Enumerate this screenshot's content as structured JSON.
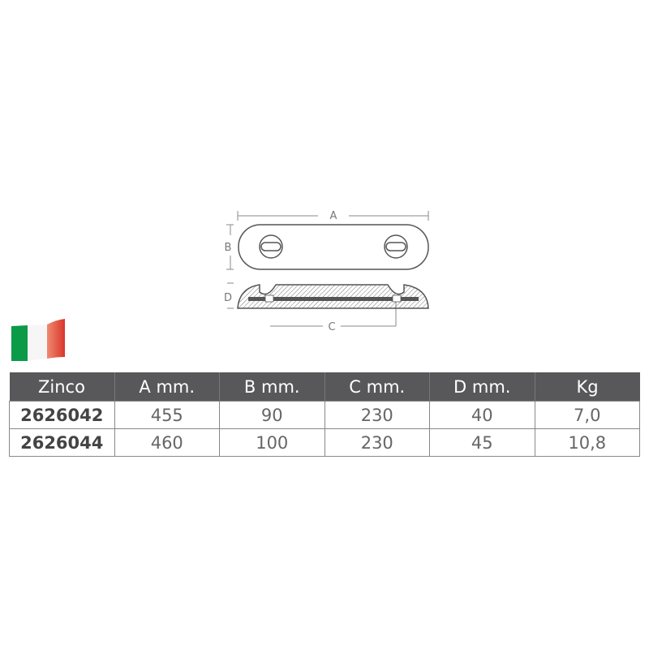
{
  "drawing": {
    "labels": {
      "a": "A",
      "b": "B",
      "c": "C",
      "d": "D"
    }
  },
  "flag": {
    "colors": [
      "#009246",
      "#ffffff",
      "#ce2b37"
    ]
  },
  "table": {
    "headers": [
      "Zinco",
      "A mm.",
      "B mm.",
      "C mm.",
      "D mm.",
      "Kg"
    ],
    "rows": [
      [
        "2626042",
        "455",
        "90",
        "230",
        "40",
        "7,0"
      ],
      [
        "2626044",
        "460",
        "100",
        "230",
        "45",
        "10,8"
      ]
    ]
  }
}
